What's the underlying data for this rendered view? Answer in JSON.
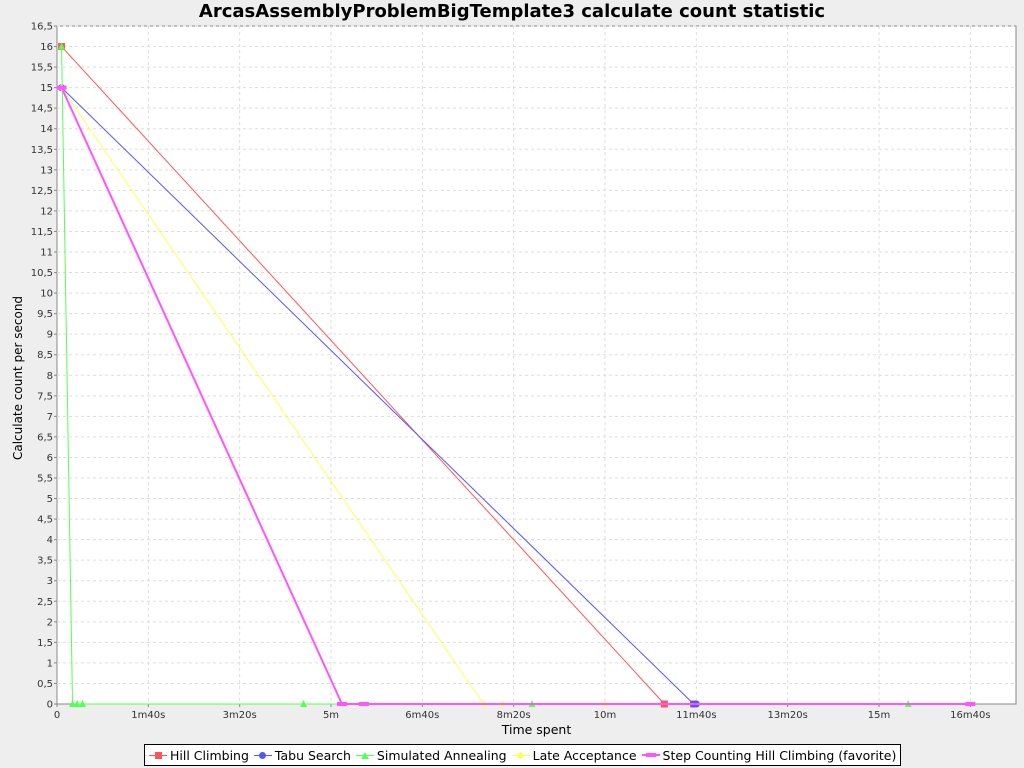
{
  "chart_data": {
    "type": "line",
    "title": "ArcasAssemblyProblemBigTemplate3 calculate count statistic",
    "xlabel": "Time spent",
    "ylabel": "Calculate count per second",
    "x_unit": "seconds",
    "xlim": [
      0,
      1050
    ],
    "ylim": [
      0,
      16.5
    ],
    "x_ticks": [
      {
        "value": 0,
        "label": "0"
      },
      {
        "value": 100,
        "label": "1m40s"
      },
      {
        "value": 200,
        "label": "3m20s"
      },
      {
        "value": 300,
        "label": "5m"
      },
      {
        "value": 400,
        "label": "6m40s"
      },
      {
        "value": 500,
        "label": "8m20s"
      },
      {
        "value": 600,
        "label": "10m"
      },
      {
        "value": 700,
        "label": "11m40s"
      },
      {
        "value": 800,
        "label": "13m20s"
      },
      {
        "value": 900,
        "label": "15m"
      },
      {
        "value": 1000,
        "label": "16m40s"
      }
    ],
    "y_ticks": [
      "0",
      "0,5",
      "1",
      "1,5",
      "2",
      "2,5",
      "3",
      "3,5",
      "4",
      "4,5",
      "5",
      "5,5",
      "6",
      "6,5",
      "7",
      "7,5",
      "8",
      "8,5",
      "9",
      "9,5",
      "10",
      "10,5",
      "11",
      "11,5",
      "12",
      "12,5",
      "13",
      "13,5",
      "14",
      "14,5",
      "15",
      "15,5",
      "16",
      "16,5"
    ],
    "y_tick_values": [
      0,
      0.5,
      1,
      1.5,
      2,
      2.5,
      3,
      3.5,
      4,
      4.5,
      5,
      5.5,
      6,
      6.5,
      7,
      7.5,
      8,
      8.5,
      9,
      9.5,
      10,
      10.5,
      11,
      11.5,
      12,
      12.5,
      13,
      13.5,
      14,
      14.5,
      15,
      15.5,
      16,
      16.5
    ],
    "grid": true,
    "legend_position": "bottom",
    "series": [
      {
        "name": "Hill Climbing",
        "color": "#ff5555",
        "marker": "square",
        "width": 1,
        "points": [
          [
            5,
            16
          ],
          [
            665,
            0
          ],
          [
            697,
            0
          ]
        ]
      },
      {
        "name": "Tabu Search",
        "color": "#5555ff",
        "marker": "circle",
        "width": 1,
        "points": [
          [
            5,
            15
          ],
          [
            697,
            0
          ],
          [
            700,
            0
          ]
        ]
      },
      {
        "name": "Simulated Annealing",
        "color": "#55ff55",
        "marker": "triangle",
        "width": 1,
        "points": [
          [
            5,
            16
          ],
          [
            17,
            0
          ],
          [
            22,
            0
          ],
          [
            28,
            0
          ],
          [
            270,
            0
          ],
          [
            520,
            0
          ],
          [
            932,
            0
          ]
        ]
      },
      {
        "name": "Late Acceptance",
        "color": "#ffff55",
        "marker": "diamond",
        "width": 1,
        "points": [
          [
            5,
            15
          ],
          [
            467,
            0
          ],
          [
            488,
            0
          ],
          [
            600,
            0
          ]
        ]
      },
      {
        "name": "Step Counting Hill Climbing (favorite)",
        "color": "#ff55ff",
        "marker": "rect",
        "width": 2,
        "points": [
          [
            5,
            15
          ],
          [
            312,
            0
          ],
          [
            336,
            0
          ],
          [
            1000,
            0
          ]
        ]
      }
    ]
  }
}
